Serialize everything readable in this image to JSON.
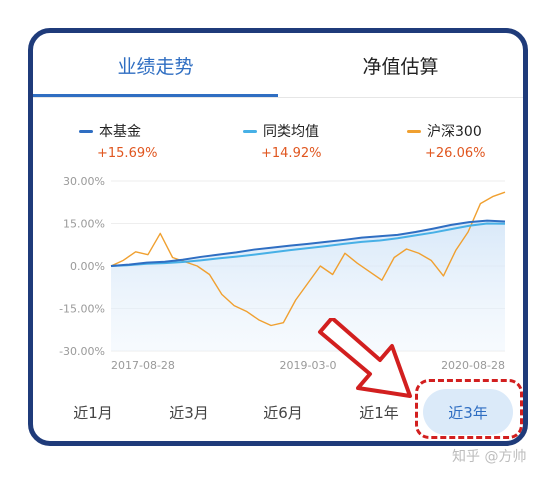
{
  "tabs": [
    {
      "label": "业绩走势",
      "active": true
    },
    {
      "label": "净值估算",
      "active": false
    }
  ],
  "legend": [
    {
      "name": "本基金",
      "value": "+15.69%",
      "color": "#2f6ec2"
    },
    {
      "name": "同类均值",
      "value": "+14.92%",
      "color": "#47b0e6"
    },
    {
      "name": "沪深300",
      "value": "+26.06%",
      "color": "#f0a030"
    }
  ],
  "chart_data": {
    "type": "line",
    "y_ticks": [
      "30.00%",
      "15.00%",
      "0.00%",
      "-15.00%",
      "-30.00%"
    ],
    "ylim": [
      -30,
      30
    ],
    "x_ticks": [
      "2017-08-28",
      "2019-03-0",
      "2020-08-28"
    ],
    "series": [
      {
        "name": "本基金",
        "color": "#2f6ec2",
        "values": [
          0,
          0.5,
          1.2,
          1.5,
          2.2,
          3.2,
          4.0,
          4.8,
          5.8,
          6.5,
          7.2,
          7.8,
          8.5,
          9.2,
          10.0,
          10.5,
          11.0,
          12.0,
          13.2,
          14.5,
          15.5,
          16.0,
          15.69
        ]
      },
      {
        "name": "同类均值",
        "color": "#47b0e6",
        "values": [
          0,
          0.3,
          0.8,
          1.0,
          1.4,
          2.0,
          2.7,
          3.3,
          4.0,
          4.8,
          5.6,
          6.3,
          7.0,
          7.8,
          8.5,
          9.0,
          9.8,
          10.8,
          11.8,
          13.0,
          14.2,
          15.0,
          14.92
        ]
      },
      {
        "name": "沪深300",
        "color": "#f0a030",
        "values": [
          0,
          2.0,
          5.0,
          4.0,
          11.5,
          3.0,
          1.5,
          0,
          -3.0,
          -10.0,
          -14.0,
          -16.0,
          -19.0,
          -21.0,
          -20.0,
          -12.0,
          -6.0,
          0,
          -3.0,
          4.5,
          1.0,
          -2.0,
          -5.0,
          3.0,
          6.0,
          4.5,
          2.0,
          -3.5,
          5.5,
          12.0,
          22.0,
          24.5,
          26.06
        ]
      }
    ]
  },
  "periods": [
    {
      "label": "近1月",
      "active": false
    },
    {
      "label": "近3月",
      "active": false
    },
    {
      "label": "近6月",
      "active": false
    },
    {
      "label": "近1年",
      "active": false
    },
    {
      "label": "近3年",
      "active": true
    }
  ],
  "watermark": "知乎 @方帅"
}
